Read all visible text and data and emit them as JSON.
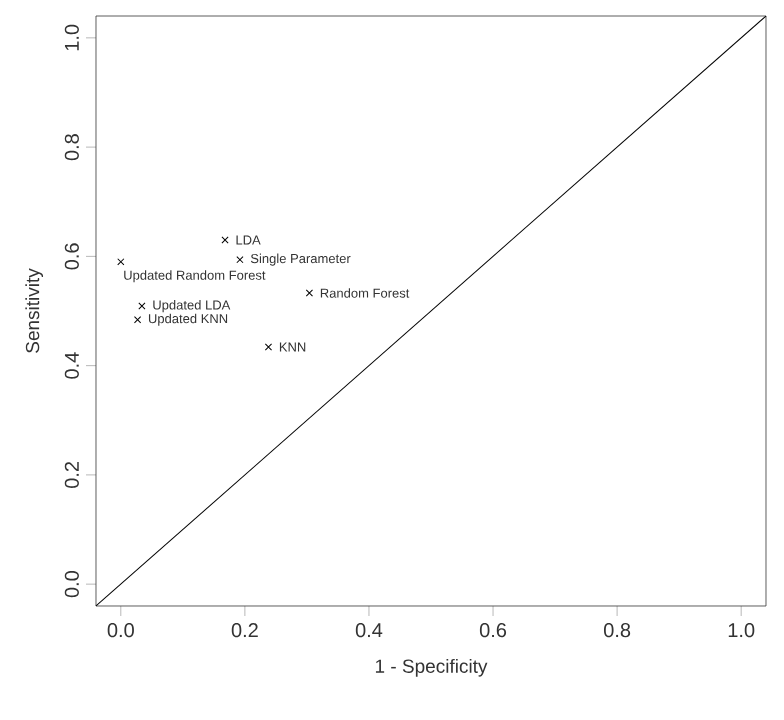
{
  "chart_data": {
    "type": "scatter",
    "xlabel": "1 - Specificity",
    "ylabel": "Sensitivity",
    "xlim": [
      -0.04,
      1.04
    ],
    "ylim": [
      -0.04,
      1.04
    ],
    "xticks": [
      {
        "value": 0,
        "label": "0.0"
      },
      0.2,
      0.4,
      0.6,
      0.8,
      {
        "value": 1,
        "label": "1.0"
      }
    ],
    "yticks": [
      {
        "value": 0,
        "label": "0.0"
      },
      0.2,
      0.4,
      0.6,
      0.8,
      {
        "value": 1,
        "label": "1.0"
      }
    ],
    "marker": "cross",
    "grid": false,
    "series": [
      {
        "color": "#000000",
        "x": [
          0.168,
          0.192,
          0.0,
          0.304,
          0.034,
          0.027,
          0.238
        ],
        "values": [
          0.63,
          0.594,
          0.59,
          0.533,
          0.509,
          0.484,
          0.434
        ]
      },
      {
        "type": "line",
        "color": "#000000",
        "marker": "none",
        "x": [
          -0.04,
          1.04
        ],
        "values": [
          -0.04,
          1.04
        ]
      }
    ],
    "annotations": [
      {
        "text": "LDA",
        "x": 0.168,
        "y": 0.63
      },
      {
        "text": "Single Parameter",
        "x": 0.192,
        "y": 0.594
      },
      {
        "text": "Updated Random Forest",
        "x": 0.0,
        "y": 0.59
      },
      {
        "text": "Random Forest",
        "x": 0.304,
        "y": 0.533
      },
      {
        "text": "Updated LDA",
        "x": 0.034,
        "y": 0.509
      },
      {
        "text": "Updated KNN",
        "x": 0.027,
        "y": 0.484
      },
      {
        "text": "KNN",
        "x": 0.238,
        "y": 0.434
      }
    ]
  }
}
